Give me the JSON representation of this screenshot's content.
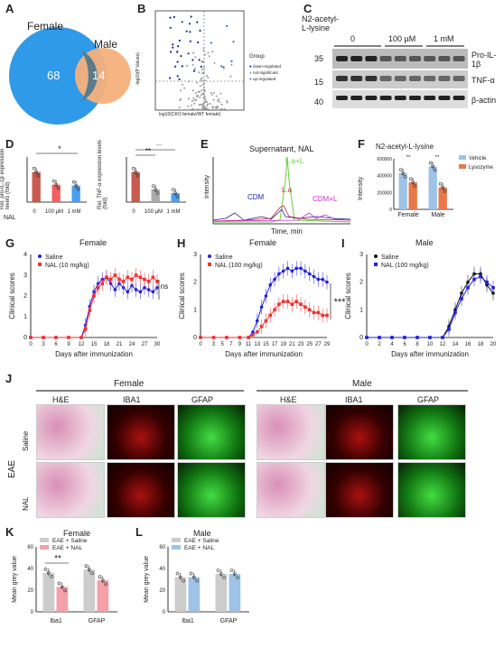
{
  "panels": {
    "A": {
      "letter": "A",
      "female_label": "Female",
      "male_label": "Male",
      "female_only": "68",
      "male_only": "14"
    },
    "B": {
      "letter": "B",
      "ylabel": "-log10(P Values)",
      "xlabel": "log10(CKO female/WT female)",
      "legend_title": "Group",
      "legend": [
        "down-regulated",
        "not-significant",
        "up-regulated"
      ]
    },
    "C": {
      "letter": "C",
      "treatment": "N2-acetyl-L-lysine",
      "doses": [
        "0",
        "100 µM",
        "1 mM"
      ],
      "mw": [
        "35",
        "15",
        "40"
      ],
      "bands": [
        "Pro-IL-1β",
        "TNF-α",
        "β-actin"
      ]
    },
    "D": {
      "letter": "D",
      "left_ylabel": "Rel. pro-IL-1β expression levels (fold)",
      "right_ylabel": "Rel. TNF-α expression levels (fold)",
      "x_prefix": "NAL",
      "xticks": [
        "0",
        "100 µM",
        "1 mM"
      ],
      "sig1": "*",
      "sig2": "**",
      "sig3": "**"
    },
    "E": {
      "letter": "E",
      "title": "Supernatant, NAL",
      "ylabel": "Intensity",
      "xlabel": "Time, min",
      "peaks": [
        "L.a+L",
        "CDM",
        "L.a",
        "CDM+L"
      ]
    },
    "F": {
      "letter": "F",
      "title": "N2-acetyl-L-lysine",
      "ylabel": "Intensity",
      "yticks": [
        "600000",
        "400000",
        "200000",
        "0"
      ],
      "groups": [
        "Female",
        "Male"
      ],
      "legend": [
        "Vehicle",
        "Lysozyme"
      ],
      "sig": "**"
    },
    "G": {
      "letter": "G",
      "title": "Female",
      "legend": [
        "Saline",
        "NAL (10 mg/kg)"
      ],
      "ylabel": "Clinical scores",
      "xlabel": "Days after immunization",
      "sig": "ns"
    },
    "H": {
      "letter": "H",
      "title": "Female",
      "legend": [
        "Saline",
        "NAL (100 mg/kg)"
      ],
      "ylabel": "Clinical scores",
      "xlabel": "Days after immunization",
      "sig": "***"
    },
    "I": {
      "letter": "I",
      "title": "Male",
      "legend": [
        "Saline",
        "NAL (100 mg/kg)"
      ],
      "ylabel": "Clinical scores",
      "xlabel": "Days after immunization"
    },
    "J": {
      "letter": "J",
      "female": "Female",
      "male": "Male",
      "stains": [
        "H&E",
        "IBA1",
        "GFAP"
      ],
      "rows": [
        "Saline",
        "NAL"
      ],
      "side": "EAE"
    },
    "K": {
      "letter": "K",
      "title": "Female",
      "legend": [
        "EAE + Saline",
        "EAE + NAL"
      ],
      "ylabel": "Mean grey value",
      "groups": [
        "Iba1",
        "GFAP"
      ],
      "sig": "**",
      "yticks": [
        "0",
        "20",
        "40",
        "60"
      ]
    },
    "L": {
      "letter": "L",
      "title": "Male",
      "legend": [
        "EAE + Saline",
        "EAE + NAL"
      ],
      "ylabel": "Mean grey value",
      "groups": [
        "Iba1",
        "GFAP"
      ],
      "yticks": [
        "0",
        "20",
        "40",
        "60"
      ]
    }
  },
  "chart_data": [
    {
      "type": "line",
      "id": "G",
      "x": [
        0,
        3,
        6,
        9,
        12,
        13,
        14,
        15,
        16,
        17,
        18,
        19,
        20,
        21,
        22,
        23,
        24,
        25,
        26,
        27,
        28,
        29,
        30
      ],
      "series": [
        {
          "name": "Saline",
          "values": [
            0,
            0,
            0,
            0,
            0,
            0.6,
            1.5,
            2.2,
            2.6,
            2.8,
            2.9,
            2.6,
            2.3,
            2.6,
            2.4,
            2.2,
            2.5,
            2.3,
            2.2,
            2.4,
            2.3,
            2.2,
            2.4
          ]
        },
        {
          "name": "NAL (10 mg/kg)",
          "values": [
            0,
            0,
            0,
            0,
            0,
            0.4,
            1.3,
            2.0,
            2.4,
            2.6,
            2.9,
            2.8,
            3.0,
            2.8,
            2.7,
            2.9,
            2.8,
            3.0,
            2.9,
            2.8,
            2.7,
            2.9,
            2.7
          ]
        }
      ],
      "xlim": [
        0,
        30
      ],
      "ylim": [
        0,
        4
      ],
      "xticks": [
        0,
        3,
        6,
        9,
        12,
        15,
        18,
        21,
        24,
        27,
        30
      ],
      "yticks": [
        0,
        1,
        2,
        3,
        4
      ]
    },
    {
      "type": "line",
      "id": "H",
      "x": [
        0,
        3,
        6,
        9,
        11,
        12,
        13,
        14,
        15,
        16,
        17,
        18,
        19,
        20,
        21,
        22,
        23,
        24,
        25,
        26,
        27,
        28,
        29
      ],
      "series": [
        {
          "name": "Saline",
          "values": [
            0,
            0,
            0,
            0,
            0,
            0.2,
            0.6,
            1.1,
            1.5,
            1.9,
            2.1,
            2.3,
            2.4,
            2.5,
            2.4,
            2.5,
            2.5,
            2.4,
            2.3,
            2.2,
            2.1,
            2.1,
            2.0
          ]
        },
        {
          "name": "NAL (100 mg/kg)",
          "values": [
            0,
            0,
            0,
            0,
            0,
            0.1,
            0.2,
            0.4,
            0.6,
            0.8,
            1.0,
            1.2,
            1.3,
            1.3,
            1.2,
            1.3,
            1.2,
            1.1,
            1.0,
            0.9,
            0.9,
            0.8,
            0.8
          ]
        }
      ],
      "xlim": [
        0,
        29
      ],
      "ylim": [
        0,
        3
      ],
      "xticks": [
        0,
        3,
        5,
        7,
        9,
        11,
        13,
        15,
        17,
        19,
        21,
        23,
        25,
        27,
        29
      ],
      "yticks": [
        0,
        1,
        2,
        3
      ]
    },
    {
      "type": "line",
      "id": "I",
      "x": [
        0,
        2,
        4,
        6,
        8,
        10,
        12,
        13,
        14,
        15,
        16,
        17,
        18,
        19,
        20
      ],
      "series": [
        {
          "name": "Saline",
          "values": [
            0,
            0,
            0,
            0,
            0,
            0,
            0,
            0.4,
            1.0,
            1.6,
            2.0,
            2.3,
            2.3,
            1.9,
            1.6
          ]
        },
        {
          "name": "NAL (100 mg/kg)",
          "values": [
            0,
            0,
            0,
            0,
            0,
            0,
            0,
            0.3,
            0.9,
            1.4,
            1.8,
            2.1,
            2.2,
            2.0,
            1.8
          ]
        }
      ],
      "xlim": [
        0,
        20
      ],
      "ylim": [
        0,
        3
      ],
      "xticks": [
        0,
        2,
        4,
        6,
        8,
        10,
        12,
        14,
        16,
        18,
        20
      ],
      "yticks": [
        0,
        1,
        2,
        3
      ]
    },
    {
      "type": "bar",
      "id": "D-left",
      "categories": [
        "0",
        "100 µM",
        "1 mM"
      ],
      "values": [
        1.0,
        0.58,
        0.55
      ],
      "ylim": [
        0,
        1.5
      ]
    },
    {
      "type": "bar",
      "id": "D-right",
      "categories": [
        "0",
        "100 µM",
        "1 mM"
      ],
      "values": [
        1.0,
        0.42,
        0.3
      ],
      "ylim": [
        0,
        1.5
      ]
    },
    {
      "type": "bar",
      "id": "F",
      "categories": [
        "Female",
        "Male"
      ],
      "series": [
        {
          "name": "Vehicle",
          "values": [
            430000,
            510000
          ]
        },
        {
          "name": "Lysozyme",
          "values": [
            320000,
            260000
          ]
        }
      ],
      "ylim": [
        0,
        600000
      ]
    },
    {
      "type": "bar",
      "id": "K",
      "categories": [
        "Iba1",
        "GFAP"
      ],
      "series": [
        {
          "name": "EAE + Saline",
          "values": [
            36,
            39
          ]
        },
        {
          "name": "EAE + NAL",
          "values": [
            23,
            29
          ]
        }
      ],
      "ylim": [
        0,
        60
      ]
    },
    {
      "type": "bar",
      "id": "L",
      "categories": [
        "Iba1",
        "GFAP"
      ],
      "series": [
        {
          "name": "EAE + Saline",
          "values": [
            32,
            35
          ]
        },
        {
          "name": "EAE + NAL",
          "values": [
            32,
            35
          ]
        }
      ],
      "ylim": [
        0,
        60
      ]
    }
  ],
  "colors": {
    "blue": "#2222dd",
    "red": "#ee3333",
    "black": "#111111",
    "grey": "#bbbbbb",
    "ltblue": "#9ec3e6",
    "orange": "#e9774a",
    "vennblue": "#2f9ae8",
    "vennorange": "#f5b07c",
    "green": "#66cc44"
  }
}
